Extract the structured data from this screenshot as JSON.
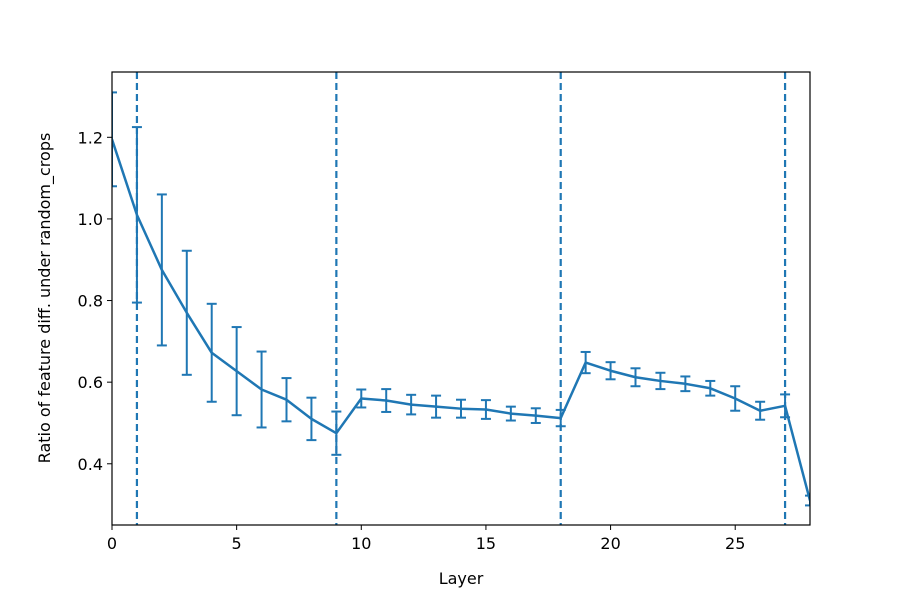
{
  "chart_data": {
    "type": "line",
    "xlabel": "Layer",
    "ylabel": "Ratio of feature diff. under random_crops",
    "xlim": [
      0,
      28
    ],
    "ylim": [
      0.25,
      1.36
    ],
    "xticks": [
      0,
      5,
      10,
      15,
      20,
      25
    ],
    "xtick_labels": [
      "0",
      "5",
      "10",
      "15",
      "20",
      "25"
    ],
    "yticks": [
      0.4,
      0.6,
      0.8,
      1.0,
      1.2
    ],
    "ytick_labels": [
      "0.4",
      "0.6",
      "0.8",
      "1.0",
      "1.2"
    ],
    "grid": false,
    "color": "#1f77b4",
    "series": [
      {
        "x": [
          0,
          1,
          2,
          3,
          4,
          5,
          6,
          7,
          8,
          9,
          10,
          11,
          12,
          13,
          14,
          15,
          16,
          17,
          18,
          19,
          20,
          21,
          22,
          23,
          24,
          25,
          26,
          27,
          28
        ],
        "y": [
          1.195,
          1.01,
          0.875,
          0.77,
          0.672,
          0.627,
          0.582,
          0.557,
          0.51,
          0.475,
          0.56,
          0.555,
          0.545,
          0.54,
          0.535,
          0.533,
          0.523,
          0.518,
          0.512,
          0.648,
          0.628,
          0.612,
          0.603,
          0.596,
          0.585,
          0.56,
          0.53,
          0.542,
          0.31
        ],
        "yerr": [
          0.115,
          0.215,
          0.185,
          0.152,
          0.12,
          0.108,
          0.093,
          0.053,
          0.052,
          0.053,
          0.022,
          0.028,
          0.024,
          0.027,
          0.022,
          0.023,
          0.017,
          0.018,
          0.02,
          0.026,
          0.021,
          0.022,
          0.02,
          0.018,
          0.018,
          0.03,
          0.022,
          0.028,
          0.012
        ]
      }
    ],
    "vlines": [
      1,
      9,
      18,
      27
    ]
  }
}
